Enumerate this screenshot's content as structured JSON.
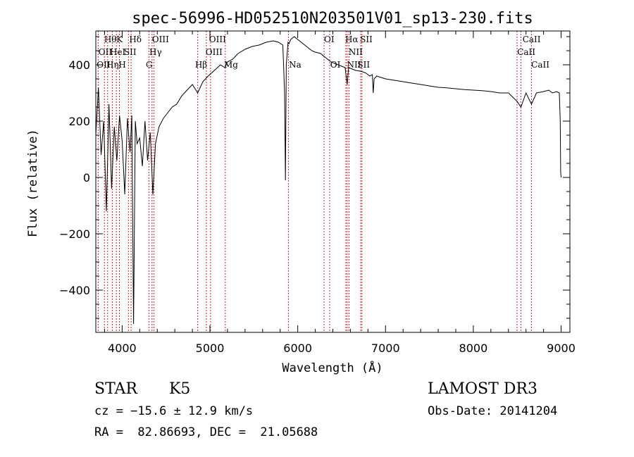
{
  "chart_data": {
    "type": "line",
    "title": "spec-56996-HD052510N203501V01_sp13-230.fits",
    "xlabel": "Wavelength (Å)",
    "ylabel": "Flux (relative)",
    "xlim": [
      3700,
      9100
    ],
    "ylim": [
      -550,
      520
    ],
    "xticks": [
      4000,
      5000,
      6000,
      7000,
      8000,
      9000
    ],
    "yticks": [
      -400,
      -200,
      0,
      200,
      400
    ],
    "x_tick_labels": [
      "4000",
      "5000",
      "6000",
      "7000",
      "8000",
      "9000"
    ],
    "y_tick_labels": [
      "−400",
      "−200",
      "0",
      "200",
      "400"
    ],
    "series": [
      {
        "name": "flux",
        "x": [
          3700,
          3730,
          3760,
          3790,
          3820,
          3850,
          3880,
          3910,
          3940,
          3970,
          4000,
          4030,
          4060,
          4090,
          4110,
          4130,
          4150,
          4170,
          4200,
          4230,
          4260,
          4290,
          4320,
          4350,
          4380,
          4420,
          4470,
          4520,
          4570,
          4620,
          4680,
          4740,
          4800,
          4860,
          4920,
          4980,
          5050,
          5120,
          5170,
          5200,
          5260,
          5320,
          5400,
          5480,
          5560,
          5640,
          5720,
          5780,
          5830,
          5850,
          5860,
          5870,
          5890,
          5900,
          5920,
          5960,
          6000,
          6040,
          6080,
          6120,
          6160,
          6200,
          6260,
          6300,
          6340,
          6380,
          6420,
          6460,
          6500,
          6540,
          6563,
          6580,
          6620,
          6660,
          6700,
          6740,
          6780,
          6820,
          6850,
          6860,
          6870,
          6900,
          6950,
          7000,
          7100,
          7200,
          7300,
          7400,
          7500,
          7600,
          7700,
          7800,
          7900,
          8000,
          8100,
          8200,
          8300,
          8400,
          8498,
          8542,
          8600,
          8662,
          8720,
          8800,
          8860,
          8900,
          8950,
          8980,
          8990,
          8995,
          9000
        ],
        "y": [
          150,
          320,
          80,
          200,
          -120,
          260,
          -40,
          180,
          60,
          220,
          130,
          -60,
          210,
          90,
          220,
          -520,
          200,
          120,
          140,
          40,
          200,
          60,
          160,
          -60,
          120,
          180,
          210,
          230,
          250,
          260,
          290,
          310,
          330,
          300,
          340,
          360,
          380,
          400,
          390,
          410,
          420,
          440,
          455,
          465,
          470,
          480,
          485,
          480,
          470,
          300,
          -10,
          400,
          480,
          475,
          490,
          500,
          490,
          480,
          470,
          460,
          450,
          445,
          440,
          430,
          420,
          410,
          405,
          400,
          395,
          390,
          330,
          390,
          385,
          380,
          378,
          375,
          370,
          360,
          365,
          300,
          350,
          360,
          355,
          350,
          345,
          340,
          335,
          330,
          325,
          320,
          318,
          315,
          312,
          310,
          308,
          305,
          300,
          300,
          270,
          250,
          300,
          260,
          300,
          305,
          310,
          300,
          305,
          300,
          200,
          20,
          0
        ]
      }
    ],
    "lines": [
      {
        "name": "OII",
        "x": 3727
      },
      {
        "name": "Hθ",
        "x": 3798
      },
      {
        "name": "Hη",
        "x": 3835
      },
      {
        "name": "HeI",
        "x": 3889
      },
      {
        "name": "K",
        "x": 3934
      },
      {
        "name": "H",
        "x": 3969
      },
      {
        "name": "SII",
        "x": 4072
      },
      {
        "name": "Hδ",
        "x": 4102
      },
      {
        "name": "G",
        "x": 4305
      },
      {
        "name": "Hγ",
        "x": 4341
      },
      {
        "name": "OIII",
        "x": 4363
      },
      {
        "name": "Hβ",
        "x": 4861
      },
      {
        "name": "OIII",
        "x": 4959
      },
      {
        "name": "OIII",
        "x": 5007
      },
      {
        "name": "Mg",
        "x": 5175
      },
      {
        "name": "Na",
        "x": 5894
      },
      {
        "name": "OI",
        "x": 6300
      },
      {
        "name": "OI",
        "x": 6364
      },
      {
        "name": "NII",
        "x": 6548
      },
      {
        "name": "Hα",
        "x": 6563
      },
      {
        "name": "NII",
        "x": 6584
      },
      {
        "name": "SII",
        "x": 6717
      },
      {
        "name": "SII",
        "x": 6731
      },
      {
        "name": "CaII",
        "x": 8498
      },
      {
        "name": "CaII",
        "x": 8542
      },
      {
        "name": "CaII",
        "x": 8662
      }
    ],
    "line_labels": [
      {
        "text": "Hθ",
        "x": 3795,
        "row": 1
      },
      {
        "text": "K",
        "x": 3934,
        "row": 1
      },
      {
        "text": "Hδ",
        "x": 4080,
        "row": 1
      },
      {
        "text": "OIII",
        "x": 4340,
        "row": 1
      },
      {
        "text": "OIII",
        "x": 4990,
        "row": 1
      },
      {
        "text": "OI",
        "x": 6300,
        "row": 1
      },
      {
        "text": "Hα",
        "x": 6540,
        "row": 1
      },
      {
        "text": "SII",
        "x": 6710,
        "row": 1
      },
      {
        "text": "CaII",
        "x": 8560,
        "row": 1
      },
      {
        "text": "OII",
        "x": 3730,
        "row": 2
      },
      {
        "text": "HeI",
        "x": 3860,
        "row": 2
      },
      {
        "text": "SII",
        "x": 4020,
        "row": 2
      },
      {
        "text": "Hγ",
        "x": 4310,
        "row": 2
      },
      {
        "text": "OIII",
        "x": 4950,
        "row": 2
      },
      {
        "text": "NII",
        "x": 6580,
        "row": 2
      },
      {
        "text": "CaII",
        "x": 8500,
        "row": 2
      },
      {
        "text": "OII",
        "x": 3710,
        "row": 3
      },
      {
        "text": "Hη",
        "x": 3820,
        "row": 3
      },
      {
        "text": "H",
        "x": 3960,
        "row": 3
      },
      {
        "text": "G",
        "x": 4270,
        "row": 3
      },
      {
        "text": "Hβ",
        "x": 4830,
        "row": 3
      },
      {
        "text": "Mg",
        "x": 5160,
        "row": 3
      },
      {
        "text": "Na",
        "x": 5900,
        "row": 3
      },
      {
        "text": "OI",
        "x": 6370,
        "row": 3
      },
      {
        "text": "NII",
        "x": 6560,
        "row": 3
      },
      {
        "text": "SII",
        "x": 6680,
        "row": 3
      },
      {
        "text": "CaII",
        "x": 8660,
        "row": 3
      }
    ]
  },
  "info": {
    "object_type": "STAR",
    "subclass": "K5",
    "redshift": "cz = −15.6 ± 12.9 km/s",
    "coords": "RA =  82.86693, DEC =  21.05688",
    "survey": "LAMOST DR3",
    "obs_date": "Obs-Date: 20141204"
  }
}
